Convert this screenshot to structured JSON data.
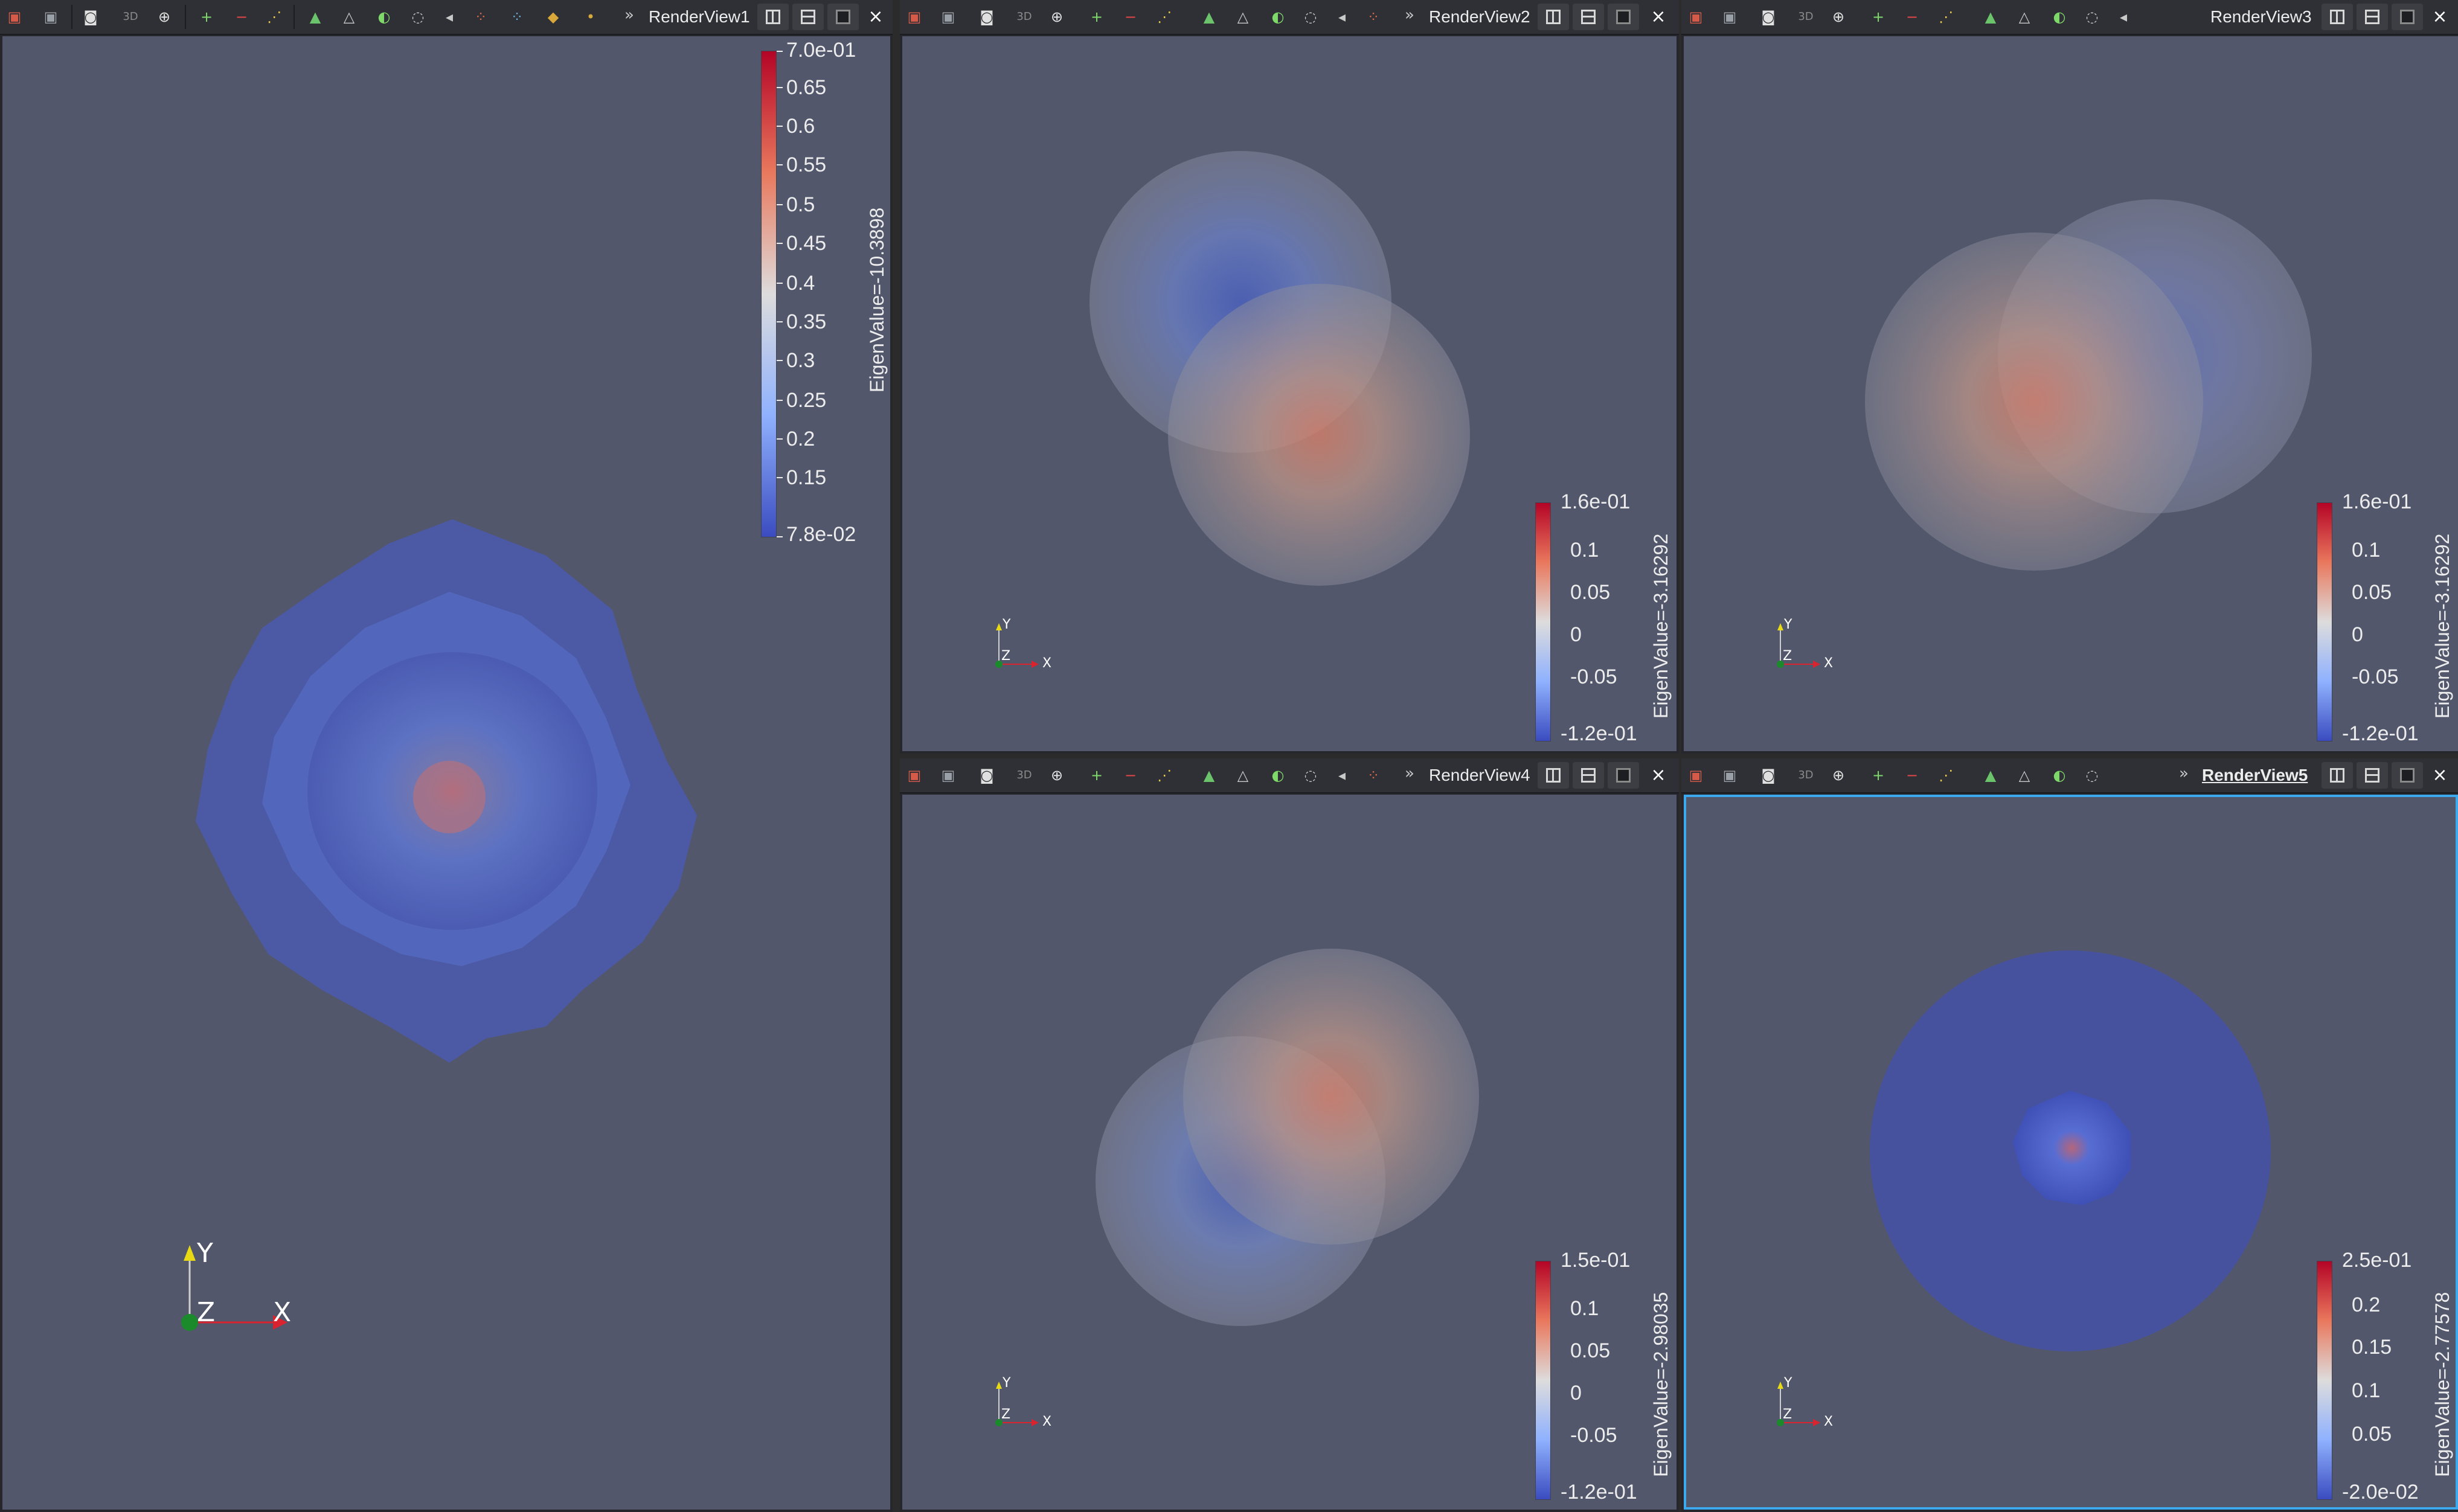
{
  "views": [
    {
      "title": "RenderView1",
      "active": false,
      "colorbar": {
        "title": "EigenValue=-10.3898",
        "ticks": [
          "7.0e-01",
          "0.65",
          "0.6",
          "0.55",
          "0.5",
          "0.45",
          "0.4",
          "0.35",
          "0.3",
          "0.25",
          "0.2",
          "0.15",
          "7.8e-02"
        ]
      },
      "axes": {
        "x": "X",
        "y": "Y",
        "z": "Z"
      }
    },
    {
      "title": "RenderView2",
      "active": false,
      "colorbar": {
        "title": "EigenValue=-3.16292",
        "ticks": [
          "1.6e-01",
          "0.1",
          "0.05",
          "0",
          "-0.05",
          "-1.2e-01"
        ]
      },
      "axes": {
        "x": "X",
        "y": "Y",
        "z": "Z"
      }
    },
    {
      "title": "RenderView3",
      "active": false,
      "colorbar": {
        "title": "EigenValue=-3.16292",
        "ticks": [
          "1.6e-01",
          "0.1",
          "0.05",
          "0",
          "-0.05",
          "-1.2e-01"
        ]
      },
      "axes": {
        "x": "X",
        "y": "Y",
        "z": "Z"
      }
    },
    {
      "title": "RenderView4",
      "active": false,
      "colorbar": {
        "title": "EigenValue=-2.98035",
        "ticks": [
          "1.5e-01",
          "0.1",
          "0.05",
          "0",
          "-0.05",
          "-1.2e-01"
        ]
      },
      "axes": {
        "x": "X",
        "y": "Y",
        "z": "Z"
      }
    },
    {
      "title": "RenderView5",
      "active": true,
      "colorbar": {
        "title": "EigenValue=-2.77578",
        "ticks": [
          "2.5e-01",
          "0.2",
          "0.15",
          "0.1",
          "0.05",
          "-2.0e-02"
        ]
      },
      "axes": {
        "x": "X",
        "y": "Y",
        "z": "Z"
      }
    }
  ],
  "toolbar": {
    "mode_3d_label": "3D",
    "chevron": "»",
    "close_glyph": "×",
    "icons": [
      "reset-camera-icon",
      "zoom-to-data-icon",
      "capture-screenshot-icon",
      "toggle-3d-icon",
      "zoom-to-box-icon",
      "select-cells-icon",
      "select-points-icon",
      "select-frustum-icon",
      "select-polygon-icon",
      "select-block-icon",
      "interactive-select-icon",
      "hover-points-icon",
      "hover-cells-icon",
      "grow-selection-icon",
      "shrink-selection-icon",
      "clear-selection-icon"
    ]
  },
  "colors": {
    "background": "#52576c",
    "colormap_high": "#b40426",
    "colormap_mid": "#dddcdc",
    "colormap_low": "#3b4cc0",
    "active_border": "#3ca9ef",
    "axis_x": "#d9232e",
    "axis_y": "#e8d915",
    "axis_z": "#1a8a2a"
  }
}
